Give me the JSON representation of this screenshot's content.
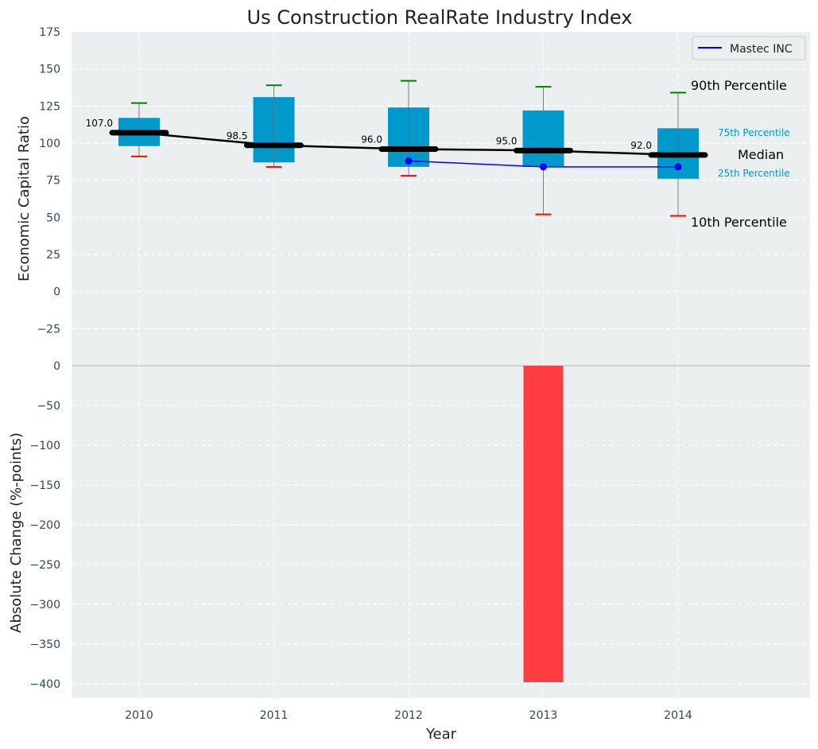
{
  "chart_data": {
    "type": "box",
    "title": "Us Construction RealRate Industry Index",
    "xlabel": "Year",
    "categories": [
      "2010",
      "2011",
      "2012",
      "2013",
      "2014"
    ],
    "top_panel": {
      "ylabel": "Economic Capital Ratio",
      "ylim": [
        -50,
        175
      ],
      "yticks": [
        -25,
        0,
        25,
        50,
        75,
        100,
        125,
        150,
        175
      ],
      "ytick_labels": [
        "−25",
        "0",
        "25",
        "50",
        "75",
        "100",
        "125",
        "150",
        "175"
      ],
      "boxes": [
        {
          "year": "2010",
          "p10": 91,
          "p25": 98,
          "median": 107,
          "p75": 117,
          "p90": 127
        },
        {
          "year": "2011",
          "p10": 84,
          "p25": 87,
          "median": 98.5,
          "p75": 131,
          "p90": 139
        },
        {
          "year": "2012",
          "p10": 78,
          "p25": 84,
          "median": 96,
          "p75": 124,
          "p90": 142
        },
        {
          "year": "2013",
          "p10": 52,
          "p25": 84,
          "median": 95,
          "p75": 122,
          "p90": 138
        },
        {
          "year": "2014",
          "p10": 51,
          "p25": 76,
          "median": 92,
          "p75": 110,
          "p90": 134
        }
      ],
      "median_labels": [
        "107.0",
        "98.5",
        "96.0",
        "95.0",
        "92.0"
      ],
      "series": [
        {
          "name": "Mastec INC",
          "x": [
            "2012",
            "2013",
            "2014"
          ],
          "values": [
            88,
            84,
            84
          ],
          "color": "#0000ff"
        }
      ],
      "legend": {
        "placement": "top-right",
        "entries": [
          "Mastec INC"
        ]
      },
      "annotations": {
        "p90": "90th Percentile",
        "p75": "75th Percentile",
        "median": "Median",
        "p25": "25th Percentile",
        "p10": "10th Percentile"
      }
    },
    "bottom_panel": {
      "ylabel": "Absolute Change (%-points)",
      "ylim": [
        -418,
        0
      ],
      "yticks": [
        0,
        -50,
        -100,
        -150,
        -200,
        -250,
        -300,
        -350,
        -400
      ],
      "ytick_labels": [
        "0",
        "−50",
        "−100",
        "−150",
        "−200",
        "−250",
        "−300",
        "−350",
        "−400"
      ],
      "bars": [
        {
          "year": "2013",
          "value": -398
        }
      ]
    },
    "grid": true,
    "colors": {
      "box": "#0099cc",
      "median": "#000000",
      "p90_cap": "#008000",
      "p10_cap": "#ff0000",
      "series": "#0000ff",
      "change_bar": "#ff3c3f",
      "panel_bg": "#ebeff0"
    }
  }
}
